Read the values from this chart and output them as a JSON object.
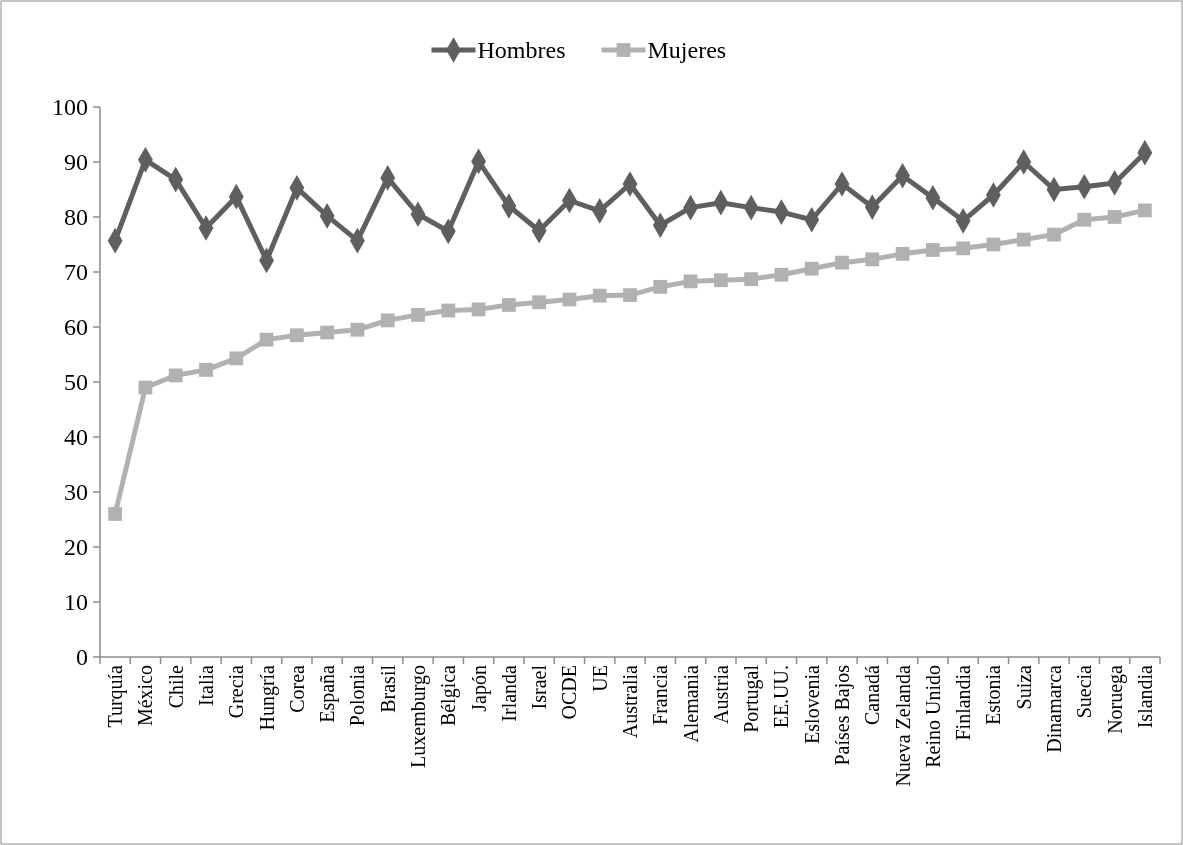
{
  "chart_data": {
    "type": "line",
    "categories": [
      "Turquía",
      "México",
      "Chile",
      "Italia",
      "Grecia",
      "Hungría",
      "Corea",
      "España",
      "Polonia",
      "Brasil",
      "Luxemburgo",
      "Bélgica",
      "Japón",
      "Irlanda",
      "Israel",
      "OCDE",
      "UE",
      "Australia",
      "Francia",
      "Alemania",
      "Austria",
      "Portugal",
      "EE.UU.",
      "Eslovenia",
      "Países Bajos",
      "Canadá",
      "Nueva Zelanda",
      "Reino Unido",
      "Finlandia",
      "Estonia",
      "Suiza",
      "Dinamarca",
      "Suecia",
      "Noruega",
      "Islandia"
    ],
    "series": [
      {
        "name": "Hombres",
        "color": "#5f5f5f",
        "marker": "diamond",
        "values": [
          75.7,
          90.4,
          86.8,
          78,
          83.7,
          72.1,
          85.3,
          80.2,
          75.7,
          87.1,
          80.5,
          77.4,
          90.1,
          82,
          77.5,
          83,
          81.1,
          86,
          78.5,
          81.7,
          82.6,
          81.7,
          80.9,
          79.5,
          86,
          81.8,
          87.5,
          83.5,
          79.3,
          84,
          90,
          85,
          85.5,
          86.2,
          91.7
        ]
      },
      {
        "name": "Mujeres",
        "color": "#b1b1b1",
        "marker": "square",
        "values": [
          26,
          49,
          51.2,
          52.2,
          54.3,
          57.7,
          58.5,
          59,
          59.5,
          61.2,
          62.2,
          63,
          63.2,
          64,
          64.5,
          65,
          65.7,
          65.8,
          67.3,
          68.3,
          68.5,
          68.7,
          69.5,
          70.6,
          71.7,
          72.3,
          73.3,
          74,
          74.3,
          75,
          75.9,
          76.8,
          79.5,
          80,
          81.2
        ]
      }
    ],
    "ylim": [
      0,
      100
    ],
    "yticks": [
      0,
      10,
      20,
      30,
      40,
      50,
      60,
      70,
      80,
      90,
      100
    ],
    "legend": "top",
    "grid": false
  }
}
